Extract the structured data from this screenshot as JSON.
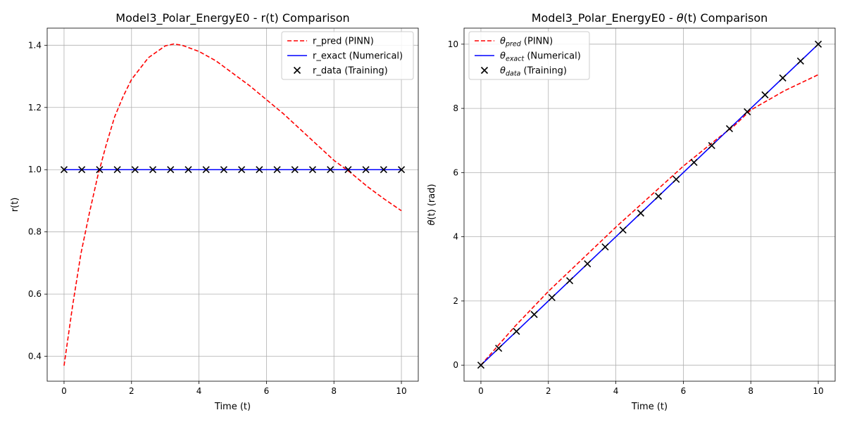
{
  "chart_data": [
    {
      "type": "line",
      "title": "Model3_Polar_EnergyE0 - r(t) Comparison",
      "xlabel": "Time (t)",
      "ylabel": "r(t)",
      "xlim": [
        -0.5,
        10.5
      ],
      "ylim": [
        0.32,
        1.455
      ],
      "xticks": [
        0,
        2,
        4,
        6,
        8,
        10
      ],
      "yticks": [
        0.4,
        0.6,
        0.8,
        1.0,
        1.2,
        1.4
      ],
      "ytick_decimals": 1,
      "grid": true,
      "legend_position": "top-right",
      "legend": [
        {
          "label": "r_pred (PINN)",
          "color": "#ff0000",
          "style": "dashed"
        },
        {
          "label": "r_exact (Numerical)",
          "color": "#0000ff",
          "style": "solid"
        },
        {
          "label": "r_data (Training)",
          "color": "#000000",
          "style": "x-marker"
        }
      ],
      "series": [
        {
          "name": "r_pred (PINN)",
          "color": "#ff0000",
          "style": "dashed",
          "x": [
            0,
            0.25,
            0.5,
            0.75,
            1.0,
            1.25,
            1.5,
            1.75,
            2.0,
            2.5,
            3.0,
            3.25,
            3.5,
            4.0,
            4.5,
            5.0,
            5.5,
            6.0,
            6.5,
            7.0,
            7.5,
            8.0,
            8.5,
            9.0,
            9.5,
            10.0
          ],
          "y": [
            0.37,
            0.56,
            0.73,
            0.86,
            0.98,
            1.08,
            1.17,
            1.235,
            1.29,
            1.36,
            1.398,
            1.404,
            1.4,
            1.38,
            1.35,
            1.31,
            1.27,
            1.225,
            1.18,
            1.13,
            1.08,
            1.03,
            0.99,
            0.945,
            0.905,
            0.868
          ]
        },
        {
          "name": "r_exact (Numerical)",
          "color": "#0000ff",
          "style": "solid",
          "x": [
            0,
            10
          ],
          "y": [
            1.0,
            1.0
          ]
        },
        {
          "name": "r_data (Training)",
          "color": "#000000",
          "style": "x-marker",
          "x": [
            0,
            0.526,
            1.053,
            1.579,
            2.105,
            2.632,
            3.158,
            3.684,
            4.211,
            4.737,
            5.263,
            5.789,
            6.316,
            6.842,
            7.368,
            7.895,
            8.421,
            8.947,
            9.474,
            10.0
          ],
          "y": [
            1.0,
            1.0,
            1.0,
            1.0,
            1.0,
            1.0,
            1.0,
            1.0,
            1.0,
            1.0,
            1.0,
            1.0,
            1.0,
            1.0,
            1.0,
            1.0,
            1.0,
            1.0,
            1.0,
            1.0
          ]
        }
      ]
    },
    {
      "type": "line",
      "title_parts": {
        "before": "Model3_Polar_EnergyE0 - ",
        "symbol": "θ",
        "after": "(t) Comparison"
      },
      "xlabel": "Time (t)",
      "ylabel_parts": {
        "symbol": "θ",
        "after": "(t) (rad)"
      },
      "xlim": [
        -0.5,
        10.5
      ],
      "ylim": [
        -0.5,
        10.5
      ],
      "xticks": [
        0,
        2,
        4,
        6,
        8,
        10
      ],
      "yticks": [
        0,
        2,
        4,
        6,
        8,
        10
      ],
      "ytick_decimals": 0,
      "grid": true,
      "legend_position": "top-left",
      "legend": [
        {
          "symbol": "θ",
          "sub": "pred",
          "after": " (PINN)",
          "color": "#ff0000",
          "style": "dashed"
        },
        {
          "symbol": "θ",
          "sub": "exact",
          "after": " (Numerical)",
          "color": "#0000ff",
          "style": "solid"
        },
        {
          "symbol": "θ",
          "sub": "data",
          "after": " (Training)",
          "color": "#000000",
          "style": "x-marker"
        }
      ],
      "series": [
        {
          "name": "θpred (PINN)",
          "color": "#ff0000",
          "style": "dashed",
          "x": [
            0,
            1,
            2,
            3,
            4,
            5,
            6,
            7,
            7.5,
            8,
            9,
            10
          ],
          "y": [
            0.0,
            1.2,
            2.3,
            3.3,
            4.3,
            5.25,
            6.2,
            7.05,
            7.45,
            7.95,
            8.55,
            9.05
          ]
        },
        {
          "name": "θexact (Numerical)",
          "color": "#0000ff",
          "style": "solid",
          "x": [
            0,
            10
          ],
          "y": [
            0,
            10
          ]
        },
        {
          "name": "θdata (Training)",
          "color": "#000000",
          "style": "x-marker",
          "x": [
            0,
            0.526,
            1.053,
            1.579,
            2.105,
            2.632,
            3.158,
            3.684,
            4.211,
            4.737,
            5.263,
            5.789,
            6.316,
            6.842,
            7.368,
            7.895,
            8.421,
            8.947,
            9.474,
            10.0
          ],
          "y": [
            0,
            0.526,
            1.053,
            1.579,
            2.105,
            2.632,
            3.158,
            3.684,
            4.211,
            4.737,
            5.263,
            5.789,
            6.316,
            6.842,
            7.368,
            7.895,
            8.421,
            8.947,
            9.474,
            10.0
          ]
        }
      ]
    }
  ]
}
